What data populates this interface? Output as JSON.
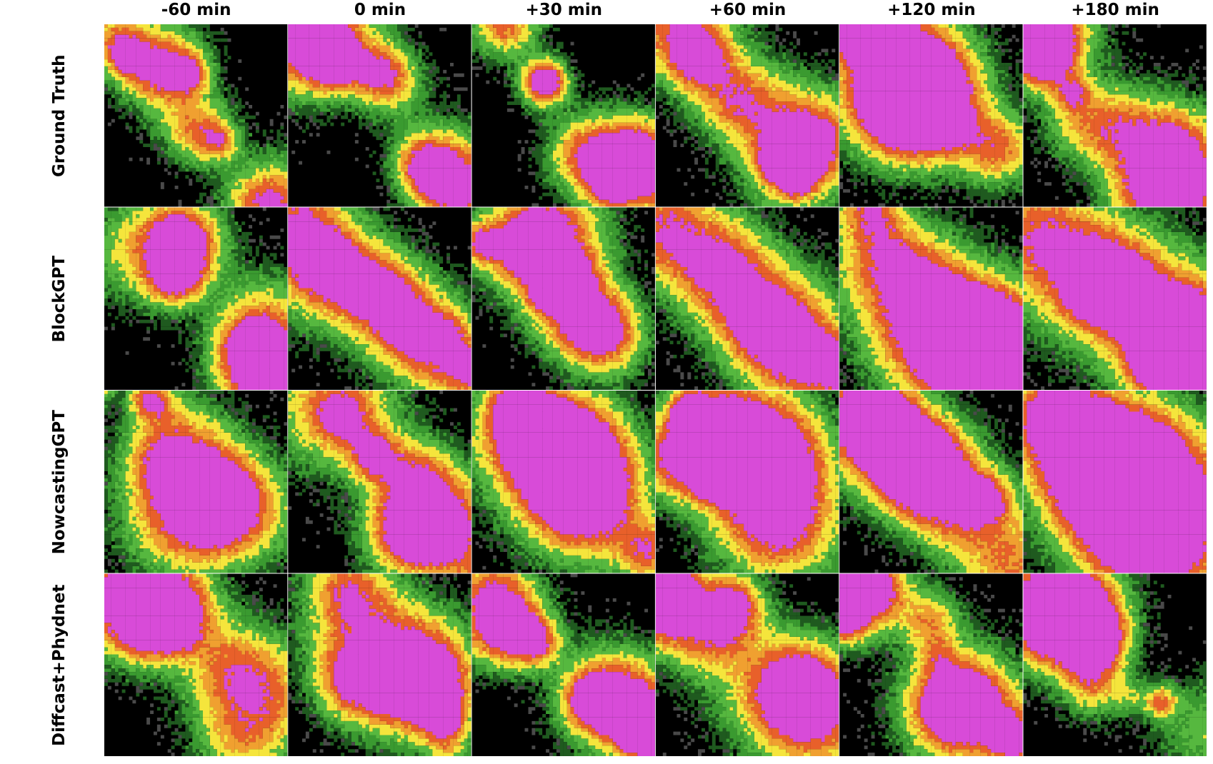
{
  "columns": [
    "-60 min",
    "0 min",
    "+30 min",
    "+60 min",
    "+120 min",
    "+180 min"
  ],
  "rows": [
    "Ground Truth",
    "BlockGPT",
    "NowcastingGPT",
    "Diffcast+Phydnet"
  ],
  "colors": {
    "background": "#000000",
    "gray": "#4a4a4a",
    "dark_green": "#1f5a1f",
    "green": "#3a9a30",
    "light_green": "#56b83f",
    "yellow": "#f5e53c",
    "orange": "#f0a030",
    "red_orange": "#e8602a",
    "magenta": "#d84bd8"
  }
}
